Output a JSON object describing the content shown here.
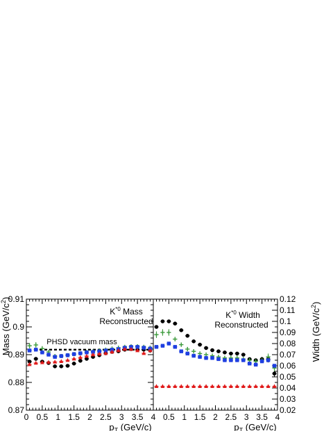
{
  "colors": {
    "black": "#000000",
    "green": "#3c9a3c",
    "blue": "#1f3fe0",
    "red": "#e01a1a"
  },
  "chart_data": [
    {
      "type": "scatter",
      "panel": "mass",
      "title_lines": [
        "K*0 Mass",
        "Reconstructed"
      ],
      "xlabel": "pT (GeV/c)",
      "ylabel": "Mass (GeV/c2)",
      "xlim": [
        0,
        4
      ],
      "ylim": [
        0.87,
        0.91
      ],
      "x_ticks": [
        "0",
        "0.5",
        "1",
        "1.5",
        "2",
        "2.5",
        "3",
        "3.5",
        "4"
      ],
      "x_tick_values": [
        0,
        0.5,
        1,
        1.5,
        2,
        2.5,
        3,
        3.5,
        4
      ],
      "y_ticks": [
        "0.87",
        "0.88",
        "0.89",
        "0.9",
        "0.91"
      ],
      "y_tick_values": [
        0.87,
        0.88,
        0.89,
        0.9,
        0.91
      ],
      "reference_line": {
        "label": "PHSD vacuum mass",
        "y": 0.8918,
        "style": "dashed"
      },
      "x": [
        0.1,
        0.3,
        0.5,
        0.7,
        0.9,
        1.1,
        1.3,
        1.5,
        1.7,
        1.9,
        2.1,
        2.3,
        2.5,
        2.7,
        2.9,
        3.1,
        3.3,
        3.5,
        3.7,
        3.9
      ],
      "series": [
        {
          "color": "black",
          "marker": "circle",
          "values": [
            0.8875,
            0.8885,
            0.8875,
            0.887,
            0.8858,
            0.8858,
            0.886,
            0.8868,
            0.8878,
            0.8885,
            0.8892,
            0.8898,
            0.8905,
            0.891,
            0.8912,
            0.8918,
            0.892,
            0.8918,
            0.8918,
            0.8915
          ],
          "errors": [
            0.0006,
            0.0006,
            0.0005,
            0.0005,
            0.0005,
            0.0005,
            0.0005,
            0.0005,
            0.0005,
            0.0005,
            0.0005,
            0.0005,
            0.0005,
            0.0005,
            0.0005,
            0.0005,
            0.0005,
            0.0006,
            0.0006,
            0.0008
          ]
        },
        {
          "color": "green",
          "marker": "cross",
          "values": [
            0.8932,
            0.8935,
            0.8922,
            0.891,
            0.8895,
            0.8895,
            0.8898,
            0.8902,
            0.8905,
            0.891,
            0.8912,
            0.8915,
            0.8918,
            0.8922,
            0.8925,
            0.8928,
            0.893,
            0.893,
            0.8928,
            0.8925
          ],
          "errors": [
            0.001,
            0.001,
            0.0009,
            0.0008,
            0.0007,
            0.0007,
            0.0007,
            0.0006,
            0.0006,
            0.0006,
            0.0006,
            0.0006,
            0.0006,
            0.0006,
            0.0006,
            0.0006,
            0.0006,
            0.0007,
            0.0007,
            0.0008
          ]
        },
        {
          "color": "blue",
          "marker": "square",
          "values": [
            0.8915,
            0.8918,
            0.8908,
            0.89,
            0.8892,
            0.8895,
            0.8898,
            0.8902,
            0.8905,
            0.8908,
            0.891,
            0.8912,
            0.8915,
            0.8918,
            0.892,
            0.8925,
            0.8928,
            0.8928,
            0.8925,
            0.8922
          ],
          "errors": [
            0.0006,
            0.0006,
            0.0006,
            0.0005,
            0.0005,
            0.0005,
            0.0005,
            0.0005,
            0.0005,
            0.0005,
            0.0005,
            0.0005,
            0.0005,
            0.0005,
            0.0005,
            0.0005,
            0.0005,
            0.0005,
            0.0005,
            0.0006
          ]
        },
        {
          "color": "red",
          "marker": "triangle",
          "values": [
            0.8865,
            0.887,
            0.8872,
            0.8873,
            0.8874,
            0.8876,
            0.888,
            0.8885,
            0.889,
            0.8895,
            0.89,
            0.8903,
            0.8905,
            0.891,
            0.8915,
            0.892,
            0.892,
            0.8915,
            0.8905,
            0.8915
          ],
          "errors": [
            0.0004,
            0.0004,
            0.0004,
            0.0004,
            0.0004,
            0.0004,
            0.0004,
            0.0004,
            0.0004,
            0.0004,
            0.0004,
            0.0004,
            0.0004,
            0.0004,
            0.0004,
            0.0004,
            0.0004,
            0.0004,
            0.0004,
            0.0004
          ]
        }
      ]
    },
    {
      "type": "scatter",
      "panel": "width",
      "title_lines": [
        "K*0 Width",
        "Reconstructed"
      ],
      "xlabel": "pT (GeV/c)",
      "ylabel": "Width (GeV/c2)",
      "xlim": [
        0,
        4
      ],
      "ylim": [
        0.02,
        0.12
      ],
      "y_axis_side": "right",
      "x_ticks": [
        "0.5",
        "1",
        "1.5",
        "2",
        "2.5",
        "3",
        "3.5",
        "4"
      ],
      "x_tick_values": [
        0.5,
        1,
        1.5,
        2,
        2.5,
        3,
        3.5,
        4
      ],
      "y_ticks": [
        "0.02",
        "0.03",
        "0.04",
        "0.05",
        "0.06",
        "0.07",
        "0.08",
        "0.09",
        "0.1",
        "0.11",
        "0.12"
      ],
      "y_tick_values": [
        0.02,
        0.03,
        0.04,
        0.05,
        0.06,
        0.07,
        0.08,
        0.09,
        0.1,
        0.11,
        0.12
      ],
      "x": [
        0.1,
        0.3,
        0.5,
        0.7,
        0.9,
        1.1,
        1.3,
        1.5,
        1.7,
        1.9,
        2.1,
        2.3,
        2.5,
        2.7,
        2.9,
        3.1,
        3.3,
        3.5,
        3.7,
        3.9
      ],
      "series": [
        {
          "color": "black",
          "marker": "circle",
          "values": [
            0.095,
            0.1,
            0.1,
            0.098,
            0.092,
            0.087,
            0.082,
            0.079,
            0.076,
            0.074,
            0.073,
            0.072,
            0.071,
            0.071,
            0.07,
            0.066,
            0.065,
            0.066,
            0.066,
            0.053
          ],
          "errors": [
            0.001,
            0.001,
            0.001,
            0.001,
            0.001,
            0.001,
            0.001,
            0.001,
            0.001,
            0.001,
            0.001,
            0.001,
            0.001,
            0.001,
            0.001,
            0.001,
            0.001,
            0.002,
            0.003,
            0.003
          ]
        },
        {
          "color": "green",
          "marker": "cross",
          "values": [
            0.088,
            0.09,
            0.09,
            0.084,
            0.079,
            0.075,
            0.073,
            0.071,
            0.07,
            0.069,
            0.068,
            0.067,
            0.067,
            0.067,
            0.066,
            0.065,
            0.064,
            0.065,
            0.068,
            0.058
          ],
          "errors": [
            0.003,
            0.003,
            0.003,
            0.002,
            0.002,
            0.002,
            0.002,
            0.002,
            0.002,
            0.002,
            0.002,
            0.002,
            0.002,
            0.002,
            0.002,
            0.002,
            0.002,
            0.002,
            0.003,
            0.003
          ]
        },
        {
          "color": "blue",
          "marker": "square",
          "values": [
            0.077,
            0.078,
            0.08,
            0.077,
            0.073,
            0.071,
            0.069,
            0.068,
            0.067,
            0.067,
            0.066,
            0.065,
            0.065,
            0.065,
            0.065,
            0.062,
            0.061,
            0.064,
            0.065,
            0.06
          ],
          "errors": [
            0.001,
            0.001,
            0.001,
            0.001,
            0.001,
            0.001,
            0.001,
            0.001,
            0.001,
            0.001,
            0.001,
            0.001,
            0.001,
            0.001,
            0.001,
            0.001,
            0.001,
            0.001,
            0.001,
            0.001
          ]
        },
        {
          "color": "red",
          "marker": "triangle",
          "values": [
            0.0415,
            0.0415,
            0.0415,
            0.0415,
            0.0415,
            0.0415,
            0.0415,
            0.0415,
            0.0415,
            0.0415,
            0.0415,
            0.0415,
            0.0415,
            0.0415,
            0.0415,
            0.0415,
            0.0415,
            0.0415,
            0.0415,
            0.0415
          ],
          "errors": [
            0,
            0,
            0,
            0,
            0,
            0,
            0,
            0,
            0,
            0,
            0,
            0,
            0,
            0,
            0,
            0,
            0,
            0,
            0,
            0
          ]
        }
      ]
    }
  ]
}
